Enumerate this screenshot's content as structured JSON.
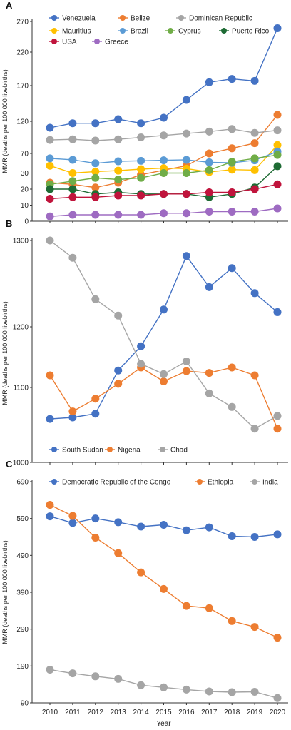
{
  "chart_data": [
    {
      "panel": "A",
      "type": "line",
      "ylabel": "MMR (deaths per 100 000 livebirths)",
      "yticks": [
        0,
        10,
        20,
        30,
        70,
        120,
        170,
        220,
        270
      ],
      "x": [
        "2010",
        "2011",
        "2012",
        "2013",
        "2014",
        "2015",
        "2016",
        "2017",
        "2018",
        "2019",
        "2020"
      ],
      "legend": "top",
      "series": [
        {
          "name": "Venezuela",
          "color": "#4472c4",
          "values": [
            110,
            117,
            117,
            123,
            117,
            125,
            150,
            175,
            180,
            177,
            259
          ]
        },
        {
          "name": "Belize",
          "color": "#ed7d31",
          "values": [
            24,
            23,
            21,
            24,
            29,
            36,
            45,
            70,
            78,
            86,
            129
          ]
        },
        {
          "name": "Dominican Republic",
          "color": "#a5a5a5",
          "values": [
            91,
            92,
            90,
            92,
            95,
            98,
            101,
            104,
            108,
            102,
            106
          ]
        },
        {
          "name": "Mauritius",
          "color": "#ffc000",
          "values": [
            45,
            30,
            33,
            35,
            38,
            40,
            39,
            32,
            37,
            36,
            83
          ]
        },
        {
          "name": "Brazil",
          "color": "#5b9bd5",
          "values": [
            60,
            57,
            50,
            54,
            55,
            56,
            57,
            52,
            51,
            56,
            73
          ]
        },
        {
          "name": "Cyprus",
          "color": "#70ad47",
          "values": [
            23,
            25,
            27,
            26,
            27,
            30,
            30,
            36,
            53,
            60,
            67
          ]
        },
        {
          "name": "Puerto Rico",
          "color": "#1e6b34",
          "values": [
            20,
            20,
            17,
            18,
            17,
            17,
            17,
            15,
            17,
            21,
            44
          ]
        },
        {
          "name": "USA",
          "color": "#c0143c",
          "values": [
            14,
            15,
            15,
            16,
            16,
            17,
            17,
            18,
            18,
            20,
            23
          ]
        },
        {
          "name": "Greece",
          "color": "#9e6bc2",
          "values": [
            3,
            4,
            4,
            4,
            4,
            5,
            5,
            6,
            6,
            6,
            8
          ]
        }
      ]
    },
    {
      "panel": "B",
      "type": "line",
      "ylabel": "MMR (deaths per 100 000 livebirths)",
      "yticks": [
        1000,
        1100,
        1200,
        1300
      ],
      "ylim": [
        1000,
        1300
      ],
      "x": [
        "2010",
        "2011",
        "2012",
        "2013",
        "2014",
        "2015",
        "2016",
        "2017",
        "2018",
        "2019",
        "2020"
      ],
      "legend": "bottom-left",
      "series": [
        {
          "name": "South Sudan",
          "color": "#4472c4",
          "values": [
            1058,
            1060,
            1065,
            1128,
            1168,
            1220,
            1282,
            1246,
            1268,
            1239,
            1217
          ]
        },
        {
          "name": "Nigeria",
          "color": "#ed7d31",
          "values": [
            1120,
            1068,
            1085,
            1106,
            1133,
            1110,
            1127,
            1124,
            1133,
            1120,
            1045
          ]
        },
        {
          "name": "Chad",
          "color": "#a5a5a5",
          "values": [
            1300,
            1280,
            1232,
            1213,
            1139,
            1122,
            1143,
            1092,
            1074,
            1045,
            1062
          ]
        }
      ]
    },
    {
      "panel": "C",
      "type": "line",
      "xlabel": "Year",
      "ylabel": "MMR (deaths per 100 000 livebirths)",
      "yticks": [
        90,
        190,
        290,
        390,
        490,
        590,
        690
      ],
      "ylim": [
        90,
        690
      ],
      "x": [
        "2010",
        "2011",
        "2012",
        "2013",
        "2014",
        "2015",
        "2016",
        "2017",
        "2018",
        "2019",
        "2020"
      ],
      "legend": "top",
      "series": [
        {
          "name": "Democratic Republic of the Congo",
          "color": "#4472c4",
          "values": [
            596,
            578,
            590,
            580,
            568,
            573,
            558,
            566,
            542,
            540,
            547
          ]
        },
        {
          "name": "Ethiopia",
          "color": "#ed7d31",
          "values": [
            627,
            597,
            538,
            496,
            444,
            399,
            353,
            347,
            312,
            296,
            267
          ]
        },
        {
          "name": "India",
          "color": "#a5a5a5",
          "values": [
            180,
            170,
            162,
            155,
            138,
            132,
            126,
            121,
            119,
            120,
            103
          ]
        }
      ]
    }
  ]
}
